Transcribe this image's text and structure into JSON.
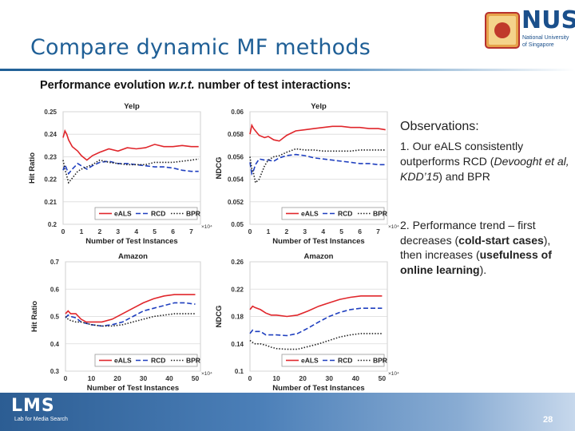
{
  "slide": {
    "title": "Compare dynamic MF methods",
    "subtitle_main": "Performance evolution ",
    "subtitle_italic": "w.r.t.",
    "subtitle_end": " number of test interactions:",
    "page_number": "28"
  },
  "logo": {
    "nus_text": "NUS",
    "nus_sub1": "National University",
    "nus_sub2": "of Singapore"
  },
  "footer": {
    "lms_text": "LMS",
    "lms_sub": "Lab for Media Search"
  },
  "observations": {
    "heading": "Observations:",
    "item1_prefix": "1. Our eALS consistently outperforms RCD (",
    "item1_cite": "Devooght et al, KDD’15",
    "item1_suffix": ") and BPR",
    "item2_prefix": "2. Performance trend – first decreases (",
    "item2_bold1": "cold-start cases",
    "item2_mid": "), then increases (",
    "item2_bold2": "usefulness of online learning",
    "item2_suffix": ")."
  },
  "colors": {
    "eALS": "#e0262b",
    "RCD": "#1f3fbf",
    "BPR": "#222222",
    "title": "#1f5f96"
  },
  "chart_data": [
    {
      "type": "line",
      "title": "Yelp",
      "xlabel": "Number of Test Instances",
      "ylabel": "Hit Ratio",
      "x_multiplier": "×10⁴",
      "xlim": [
        0,
        7.5
      ],
      "ylim": [
        0.2,
        0.25
      ],
      "xticks": [
        0,
        1,
        2,
        3,
        4,
        5,
        6,
        7
      ],
      "xtick_labels": [
        "0",
        "1",
        "2",
        "3",
        "4",
        "5",
        "6",
        "7"
      ],
      "yticks": [
        0.2,
        0.21,
        0.22,
        0.23,
        0.24,
        0.25
      ],
      "ytick_labels": [
        "0.2",
        "0.21",
        "0.22",
        "0.23",
        "0.24",
        "0.25"
      ],
      "x": [
        0,
        0.1,
        0.2,
        0.3,
        0.5,
        0.8,
        1,
        1.3,
        1.6,
        2,
        2.5,
        3,
        3.5,
        4,
        4.5,
        5,
        5.5,
        6,
        6.5,
        7,
        7.4
      ],
      "series": [
        {
          "name": "eALS",
          "style": "solid",
          "values": [
            0.2385,
            0.2415,
            0.24,
            0.2375,
            0.2345,
            0.2325,
            0.2305,
            0.2285,
            0.2305,
            0.232,
            0.2335,
            0.2325,
            0.234,
            0.2335,
            0.234,
            0.2355,
            0.2345,
            0.2345,
            0.235,
            0.2345,
            0.2345
          ]
        },
        {
          "name": "RCD",
          "style": "dashed",
          "values": [
            0.224,
            0.2265,
            0.2245,
            0.2225,
            0.2245,
            0.227,
            0.226,
            0.2245,
            0.226,
            0.2275,
            0.228,
            0.227,
            0.227,
            0.2265,
            0.226,
            0.2255,
            0.2255,
            0.225,
            0.224,
            0.2235,
            0.2235
          ]
        },
        {
          "name": "BPR",
          "style": "dotted",
          "values": [
            0.2285,
            0.2245,
            0.2215,
            0.2185,
            0.2205,
            0.2235,
            0.2245,
            0.2255,
            0.2265,
            0.2285,
            0.2275,
            0.227,
            0.2265,
            0.2265,
            0.2265,
            0.2275,
            0.2275,
            0.2275,
            0.228,
            0.2285,
            0.229
          ]
        }
      ]
    },
    {
      "type": "line",
      "title": "Yelp",
      "xlabel": "Number of Test Instances",
      "ylabel": "NDCG",
      "x_multiplier": "×10⁴",
      "xlim": [
        0,
        7.5
      ],
      "ylim": [
        0.05,
        0.06
      ],
      "xticks": [
        0,
        1,
        2,
        3,
        4,
        5,
        6,
        7
      ],
      "xtick_labels": [
        "0",
        "1",
        "2",
        "3",
        "4",
        "5",
        "6",
        "7"
      ],
      "yticks": [
        0.05,
        0.052,
        0.054,
        0.056,
        0.058,
        0.06
      ],
      "ytick_labels": [
        "0.05",
        "0.052",
        "0.054",
        "0.056",
        "0.058",
        "0.06"
      ],
      "x": [
        0,
        0.1,
        0.2,
        0.3,
        0.5,
        0.8,
        1,
        1.3,
        1.6,
        2,
        2.5,
        3,
        3.5,
        4,
        4.5,
        5,
        5.5,
        6,
        6.5,
        7,
        7.4
      ],
      "series": [
        {
          "name": "eALS",
          "style": "solid",
          "values": [
            0.058,
            0.0588,
            0.0585,
            0.0583,
            0.0579,
            0.0577,
            0.0578,
            0.0575,
            0.0574,
            0.0579,
            0.0583,
            0.0584,
            0.0585,
            0.0586,
            0.0587,
            0.0587,
            0.0586,
            0.0586,
            0.0585,
            0.0585,
            0.0584
          ]
        },
        {
          "name": "RCD",
          "style": "dashed",
          "values": [
            0.0555,
            0.0545,
            0.0548,
            0.0553,
            0.0558,
            0.0557,
            0.0557,
            0.0556,
            0.0559,
            0.0561,
            0.0562,
            0.0561,
            0.0559,
            0.0558,
            0.0557,
            0.0556,
            0.0555,
            0.0554,
            0.0554,
            0.0553,
            0.0553
          ]
        },
        {
          "name": "BPR",
          "style": "dotted",
          "values": [
            0.056,
            0.0549,
            0.0545,
            0.0537,
            0.054,
            0.0552,
            0.0557,
            0.056,
            0.0561,
            0.0564,
            0.0567,
            0.0566,
            0.0566,
            0.0565,
            0.0565,
            0.0565,
            0.0565,
            0.0566,
            0.0566,
            0.0566,
            0.0566
          ]
        }
      ]
    },
    {
      "type": "line",
      "title": "Amazon",
      "xlabel": "Number of Test Instances",
      "ylabel": "Hit Ratio",
      "x_multiplier": "×10⁴",
      "xlim": [
        0,
        52
      ],
      "ylim": [
        0.3,
        0.7
      ],
      "xticks": [
        0,
        10,
        20,
        30,
        40,
        50
      ],
      "xtick_labels": [
        "0",
        "10",
        "20",
        "30",
        "40",
        "50"
      ],
      "yticks": [
        0.3,
        0.4,
        0.5,
        0.6,
        0.7
      ],
      "ytick_labels": [
        "0.3",
        "0.4",
        "0.5",
        "0.6",
        "0.7"
      ],
      "x": [
        0,
        1,
        2,
        4,
        6,
        8,
        10,
        14,
        18,
        22,
        26,
        30,
        34,
        38,
        42,
        46,
        50
      ],
      "series": [
        {
          "name": "eALS",
          "style": "solid",
          "values": [
            0.51,
            0.52,
            0.51,
            0.51,
            0.49,
            0.48,
            0.48,
            0.48,
            0.49,
            0.51,
            0.53,
            0.55,
            0.565,
            0.575,
            0.58,
            0.58,
            0.58
          ]
        },
        {
          "name": "RCD",
          "style": "dashed",
          "values": [
            0.495,
            0.505,
            0.5,
            0.495,
            0.48,
            0.475,
            0.47,
            0.465,
            0.47,
            0.48,
            0.5,
            0.52,
            0.53,
            0.54,
            0.55,
            0.55,
            0.545
          ]
        },
        {
          "name": "BPR",
          "style": "dotted",
          "values": [
            0.5,
            0.49,
            0.485,
            0.48,
            0.48,
            0.475,
            0.47,
            0.465,
            0.465,
            0.47,
            0.48,
            0.49,
            0.5,
            0.505,
            0.51,
            0.51,
            0.51
          ]
        }
      ]
    },
    {
      "type": "line",
      "title": "Amazon",
      "xlabel": "Number of Test Instances",
      "ylabel": "NDCG",
      "x_multiplier": "×10⁴",
      "xlim": [
        0,
        52
      ],
      "ylim": [
        0.1,
        0.26
      ],
      "xticks": [
        0,
        10,
        20,
        30,
        40,
        50
      ],
      "xtick_labels": [
        "0",
        "10",
        "20",
        "30",
        "40",
        "50"
      ],
      "yticks": [
        0.1,
        0.14,
        0.18,
        0.22,
        0.26
      ],
      "ytick_labels": [
        "0.1",
        "0.14",
        "0.18",
        "0.22",
        "0.26"
      ],
      "x": [
        0,
        1,
        2,
        4,
        6,
        8,
        10,
        14,
        18,
        22,
        26,
        30,
        34,
        38,
        42,
        46,
        50
      ],
      "series": [
        {
          "name": "eALS",
          "style": "solid",
          "values": [
            0.19,
            0.195,
            0.193,
            0.19,
            0.185,
            0.182,
            0.182,
            0.18,
            0.182,
            0.188,
            0.195,
            0.2,
            0.205,
            0.208,
            0.21,
            0.21,
            0.21
          ]
        },
        {
          "name": "RCD",
          "style": "dashed",
          "values": [
            0.155,
            0.16,
            0.158,
            0.158,
            0.153,
            0.153,
            0.153,
            0.152,
            0.155,
            0.163,
            0.172,
            0.18,
            0.186,
            0.19,
            0.192,
            0.192,
            0.192
          ]
        },
        {
          "name": "BPR",
          "style": "dotted",
          "values": [
            0.145,
            0.142,
            0.14,
            0.14,
            0.138,
            0.135,
            0.133,
            0.132,
            0.132,
            0.136,
            0.14,
            0.145,
            0.15,
            0.153,
            0.155,
            0.155,
            0.155
          ]
        }
      ]
    }
  ]
}
